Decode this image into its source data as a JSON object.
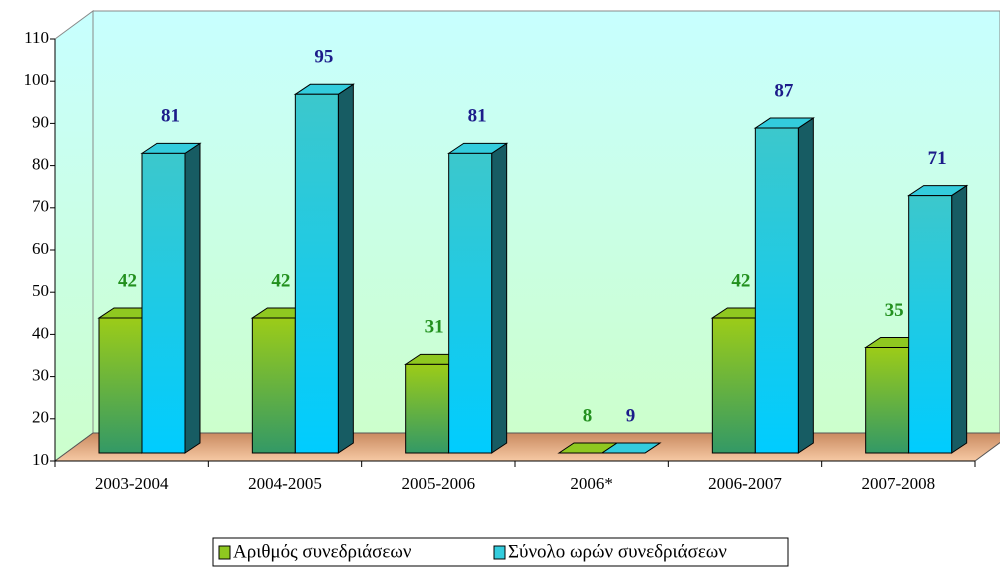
{
  "chart_data": {
    "type": "bar3d",
    "categories": [
      "2003-2004",
      "2004-2005",
      "2005-2006",
      "2006*",
      "2006-2007",
      "2007-2008"
    ],
    "series": [
      {
        "name": "Αριθμός συνεδριάσεων",
        "color": "#8fc820",
        "label_color": "#22901e",
        "values": [
          42,
          42,
          31,
          8,
          42,
          35
        ]
      },
      {
        "name": "Σύνολο ωρών συνεδριάσεων",
        "color": "#33ccdd",
        "label_color": "#1c1c8a",
        "values": [
          81,
          95,
          81,
          9,
          87,
          71
        ]
      }
    ],
    "ylim": [
      10,
      110
    ],
    "yticks": [
      10,
      20,
      30,
      40,
      50,
      60,
      70,
      80,
      90,
      100,
      110
    ]
  }
}
